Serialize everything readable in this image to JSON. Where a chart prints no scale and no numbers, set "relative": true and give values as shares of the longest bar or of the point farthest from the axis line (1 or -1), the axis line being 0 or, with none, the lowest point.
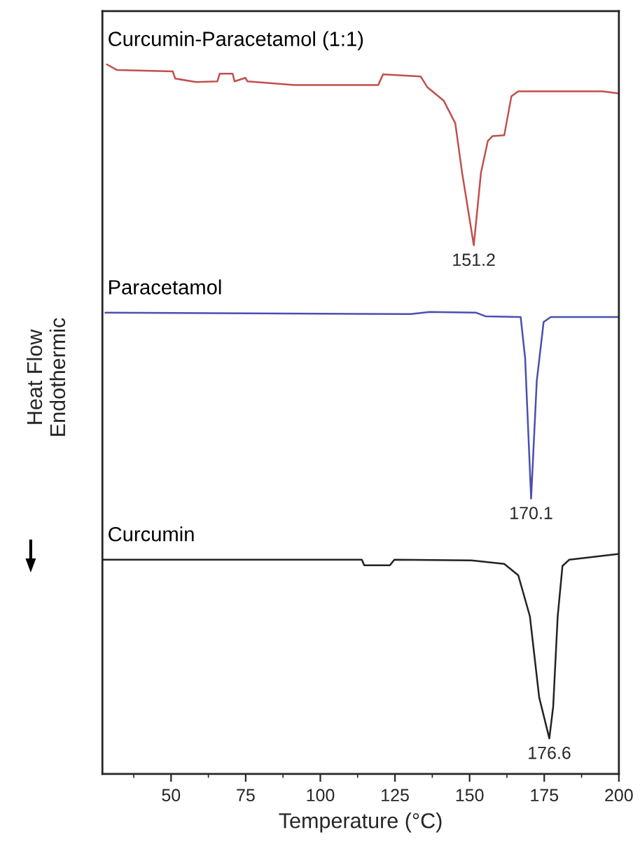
{
  "chart_data": {
    "type": "line",
    "relative": true,
    "xlabel": "Temperature (°C)",
    "ylabel": "Heat Flow\nEndothermic",
    "xlim": [
      27,
      200
    ],
    "xticks": [
      50,
      75,
      100,
      125,
      150,
      175,
      200
    ],
    "tick_labels": "x",
    "grid": false,
    "legend": false,
    "marker": "none",
    "line_style": "solid",
    "series": [
      {
        "name": "Curcumin-Paracetamol (1:1)",
        "color": "#c0504d",
        "x": [
          28.5,
          31.9,
          50.6,
          51.4,
          58.4,
          65.5,
          66.3,
          70.6,
          71.3,
          74.9,
          75.6,
          91.3,
          119.4,
          121,
          133.6,
          135.8,
          141.3,
          145.2,
          147.5,
          151.4,
          153.8,
          156.1,
          157.7,
          161.6,
          164,
          166.3,
          194.5,
          200
        ],
        "values": [
          1.0,
          0.992,
          0.99,
          0.98,
          0.975,
          0.976,
          0.987,
          0.987,
          0.976,
          0.981,
          0.976,
          0.971,
          0.971,
          0.986,
          0.983,
          0.968,
          0.949,
          0.917,
          0.847,
          0.745,
          0.847,
          0.892,
          0.899,
          0.9,
          0.955,
          0.962,
          0.962,
          0.959
        ]
      },
      {
        "name": "Paracetamol",
        "color": "#4a4fb0",
        "x": [
          28,
          130.3,
          136.6,
          152.2,
          155.3,
          167.1,
          168.6,
          170.6,
          172.5,
          174.8,
          177.2,
          200
        ],
        "values": [
          0.65,
          0.648,
          0.651,
          0.65,
          0.645,
          0.644,
          0.586,
          0.388,
          0.554,
          0.637,
          0.644,
          0.644
        ]
      },
      {
        "name": "Curcumin",
        "color": "#222222",
        "x": [
          27.2,
          113.9,
          114.7,
          123.3,
          124.8,
          150.6,
          161.6,
          166.3,
          170.2,
          173.3,
          176.7,
          178,
          179.5,
          181.1,
          183.4,
          200
        ],
        "values": [
          0.302,
          0.302,
          0.294,
          0.294,
          0.302,
          0.301,
          0.296,
          0.28,
          0.222,
          0.108,
          0.05,
          0.095,
          0.222,
          0.293,
          0.302,
          0.31
        ]
      }
    ],
    "annotations": [
      {
        "text": "151.2",
        "x": 151.4,
        "y": 0.745
      },
      {
        "text": "170.1",
        "x": 170.6,
        "y": 0.388
      },
      {
        "text": "176.6",
        "x": 176.7,
        "y": 0.05
      }
    ]
  }
}
